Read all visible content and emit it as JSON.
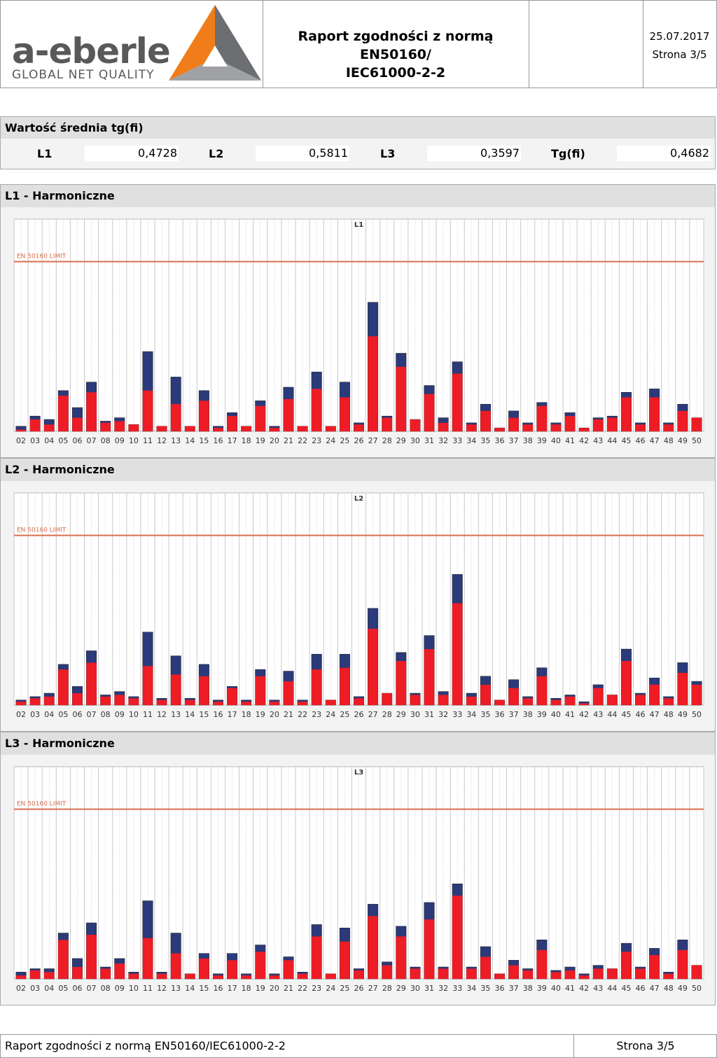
{
  "header": {
    "logo_text": "a-eberle",
    "logo_sub": "GLOBAL NET QUALITY",
    "title_line1": "Raport zgodności z normą EN50160/",
    "title_line2": "IEC61000-2-2",
    "date": "25.07.2017",
    "page": "Strona 3/5",
    "colors": {
      "logo_gray": "#58595b",
      "logo_orange": "#f07d1a",
      "logo_dark": "#6d6e71"
    }
  },
  "tgfi": {
    "title": "Wartość średnia tg(fi)",
    "items": [
      {
        "label": "L1",
        "value": "0,4728"
      },
      {
        "label": "L2",
        "value": "0,5811"
      },
      {
        "label": "L3",
        "value": "0,3597"
      },
      {
        "label": "Tg(fi)",
        "value": "0,4682"
      }
    ]
  },
  "colors": {
    "red": "#ee1c25",
    "blue": "#2b3a7a",
    "limit": "#d96f4f"
  },
  "chart_data": [
    {
      "type": "bar",
      "section_title": "L1 - Harmoniczne",
      "title": "L1",
      "limit_label": "EN 50160 LIMIT",
      "limit": 100,
      "ylim": [
        0,
        125
      ],
      "categories": [
        "02",
        "03",
        "04",
        "05",
        "06",
        "07",
        "08",
        "09",
        "10",
        "11",
        "12",
        "13",
        "14",
        "15",
        "16",
        "17",
        "18",
        "19",
        "20",
        "21",
        "22",
        "23",
        "24",
        "25",
        "26",
        "27",
        "28",
        "29",
        "30",
        "31",
        "32",
        "33",
        "34",
        "35",
        "36",
        "37",
        "38",
        "39",
        "40",
        "41",
        "42",
        "43",
        "44",
        "45",
        "46",
        "47",
        "48",
        "49",
        "50"
      ],
      "series": [
        {
          "name": "red",
          "values": [
            1,
            7,
            4,
            21,
            8,
            23,
            5,
            6,
            4,
            24,
            3,
            16,
            3,
            18,
            2,
            9,
            3,
            15,
            2,
            19,
            3,
            25,
            3,
            20,
            4,
            56,
            8,
            38,
            7,
            22,
            5,
            34,
            4,
            12,
            2,
            8,
            4,
            15,
            4,
            9,
            2,
            7,
            8,
            20,
            4,
            20,
            4,
            12,
            8
          ]
        },
        {
          "name": "blue",
          "values": [
            3,
            9,
            7,
            24,
            14,
            29,
            6,
            8,
            4,
            47,
            3,
            32,
            3,
            24,
            3,
            11,
            3,
            18,
            3,
            26,
            3,
            35,
            3,
            29,
            5,
            76,
            9,
            46,
            7,
            27,
            8,
            41,
            5,
            16,
            2,
            12,
            5,
            17,
            5,
            11,
            2,
            8,
            9,
            23,
            5,
            25,
            5,
            16,
            8
          ]
        }
      ]
    },
    {
      "type": "bar",
      "section_title": "L2 - Harmoniczne",
      "title": "L2",
      "limit_label": "EN 50160 LIMIT",
      "limit": 100,
      "ylim": [
        0,
        125
      ],
      "categories": [
        "02",
        "03",
        "04",
        "05",
        "06",
        "07",
        "08",
        "09",
        "10",
        "11",
        "12",
        "13",
        "14",
        "15",
        "16",
        "17",
        "18",
        "19",
        "20",
        "21",
        "22",
        "23",
        "24",
        "25",
        "26",
        "27",
        "28",
        "29",
        "30",
        "31",
        "32",
        "33",
        "34",
        "35",
        "36",
        "37",
        "38",
        "39",
        "40",
        "41",
        "42",
        "43",
        "44",
        "45",
        "46",
        "47",
        "48",
        "49",
        "50"
      ],
      "series": [
        {
          "name": "red",
          "values": [
            2,
            4,
            5,
            21,
            7,
            25,
            5,
            6,
            4,
            23,
            3,
            18,
            3,
            17,
            2,
            10,
            2,
            17,
            2,
            14,
            2,
            21,
            3,
            22,
            4,
            45,
            7,
            26,
            6,
            33,
            6,
            60,
            5,
            12,
            3,
            10,
            4,
            17,
            3,
            5,
            1,
            10,
            6,
            26,
            6,
            12,
            4,
            19,
            12
          ]
        },
        {
          "name": "blue",
          "values": [
            3,
            5,
            7,
            24,
            11,
            32,
            6,
            8,
            5,
            43,
            4,
            29,
            4,
            24,
            3,
            11,
            3,
            21,
            3,
            20,
            3,
            30,
            3,
            30,
            5,
            57,
            7,
            31,
            7,
            41,
            8,
            77,
            7,
            17,
            3,
            15,
            5,
            22,
            4,
            6,
            2,
            12,
            6,
            33,
            7,
            16,
            5,
            25,
            14
          ]
        }
      ]
    },
    {
      "type": "bar",
      "section_title": "L3 - Harmoniczne",
      "title": "L3",
      "limit_label": "EN 50160 LIMIT",
      "limit": 100,
      "ylim": [
        0,
        125
      ],
      "categories": [
        "02",
        "03",
        "04",
        "05",
        "06",
        "07",
        "08",
        "09",
        "10",
        "11",
        "12",
        "13",
        "14",
        "15",
        "16",
        "17",
        "18",
        "19",
        "20",
        "21",
        "22",
        "23",
        "24",
        "25",
        "26",
        "27",
        "28",
        "29",
        "30",
        "31",
        "32",
        "33",
        "34",
        "35",
        "36",
        "37",
        "38",
        "39",
        "40",
        "41",
        "42",
        "43",
        "44",
        "45",
        "46",
        "47",
        "48",
        "49",
        "50"
      ],
      "series": [
        {
          "name": "red",
          "values": [
            2,
            5,
            4,
            23,
            7,
            26,
            6,
            9,
            3,
            24,
            3,
            15,
            3,
            12,
            2,
            11,
            2,
            16,
            2,
            11,
            3,
            25,
            3,
            22,
            5,
            37,
            8,
            25,
            6,
            35,
            6,
            49,
            6,
            13,
            3,
            8,
            5,
            17,
            4,
            5,
            2,
            6,
            6,
            16,
            6,
            14,
            3,
            17,
            8
          ]
        },
        {
          "name": "blue",
          "values": [
            4,
            6,
            6,
            27,
            12,
            33,
            7,
            12,
            4,
            46,
            4,
            27,
            3,
            15,
            3,
            15,
            3,
            20,
            3,
            13,
            4,
            32,
            3,
            30,
            6,
            44,
            10,
            31,
            7,
            45,
            7,
            56,
            7,
            19,
            3,
            11,
            6,
            23,
            5,
            7,
            3,
            8,
            6,
            21,
            7,
            18,
            4,
            23,
            8
          ]
        }
      ]
    }
  ],
  "footer": {
    "left": "Raport zgodności z normą EN50160/IEC61000-2-2",
    "right": "Strona 3/5"
  }
}
